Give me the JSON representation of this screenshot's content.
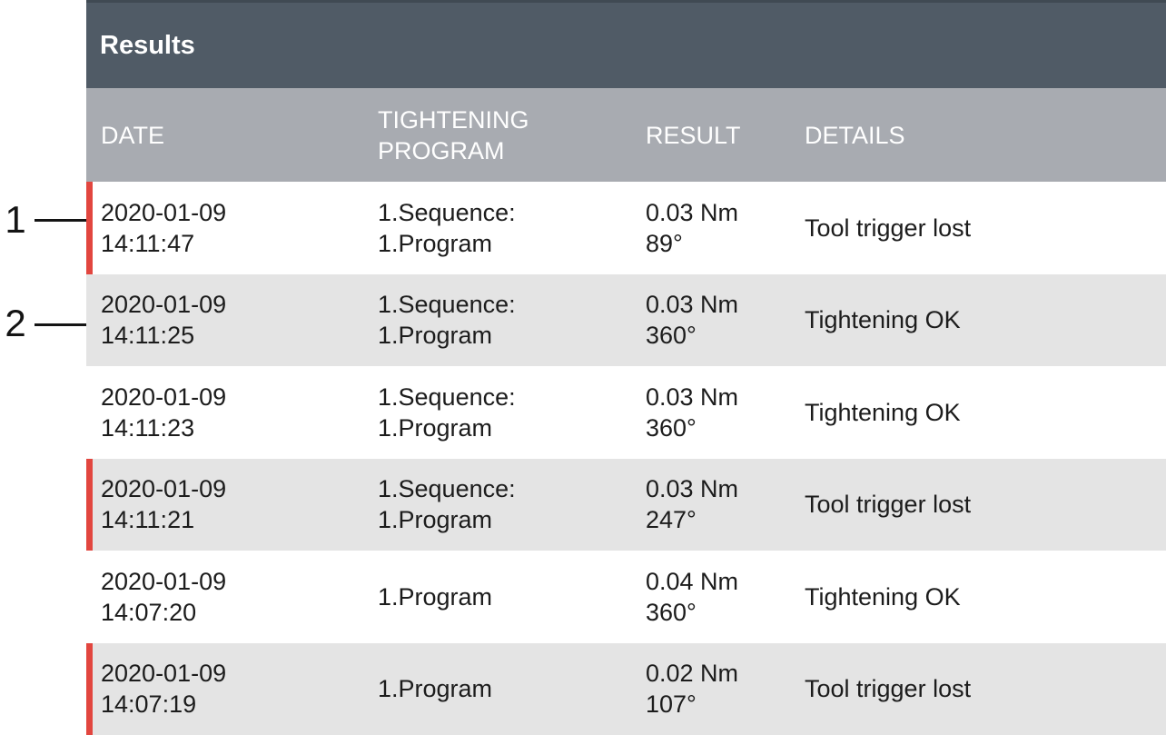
{
  "colors": {
    "title_bar_bg": "#505b66",
    "title_bar_top_edge": "#404a53",
    "header_row_bg": "#a8abb1",
    "row_bg": "#ffffff",
    "row_alt_bg": "#e4e4e4",
    "nok_flag_red": "#e2463f",
    "body_text": "#1c1c1c",
    "header_text": "#ffffff"
  },
  "panel": {
    "title": "Results"
  },
  "table": {
    "columns": {
      "date": "DATE",
      "program": "TIGHTENING PROGRAM",
      "result": "RESULT",
      "details": "DETAILS"
    },
    "rows": [
      {
        "date": "2020-01-09",
        "time": "14:11:47",
        "program_line1": "1.Sequence:",
        "program_line2": "1.Program",
        "torque": "0.03 Nm",
        "angle": "89°",
        "details": "Tool trigger lost",
        "flagged": true
      },
      {
        "date": "2020-01-09",
        "time": "14:11:25",
        "program_line1": "1.Sequence:",
        "program_line2": "1.Program",
        "torque": "0.03 Nm",
        "angle": "360°",
        "details": "Tightening OK",
        "flagged": false
      },
      {
        "date": "2020-01-09",
        "time": "14:11:23",
        "program_line1": "1.Sequence:",
        "program_line2": "1.Program",
        "torque": "0.03 Nm",
        "angle": "360°",
        "details": "Tightening OK",
        "flagged": false
      },
      {
        "date": "2020-01-09",
        "time": "14:11:21",
        "program_line1": "1.Sequence:",
        "program_line2": "1.Program",
        "torque": "0.03 Nm",
        "angle": "247°",
        "details": "Tool trigger lost",
        "flagged": true
      },
      {
        "date": "2020-01-09",
        "time": "14:07:20",
        "program_line1": "1.Program",
        "program_line2": "",
        "torque": "0.04 Nm",
        "angle": "360°",
        "details": "Tightening OK",
        "flagged": false
      },
      {
        "date": "2020-01-09",
        "time": "14:07:19",
        "program_line1": "1.Program",
        "program_line2": "",
        "torque": "0.02 Nm",
        "angle": "107°",
        "details": "Tool trigger lost",
        "flagged": true
      }
    ]
  },
  "callouts": [
    {
      "label": "1"
    },
    {
      "label": "2"
    }
  ]
}
